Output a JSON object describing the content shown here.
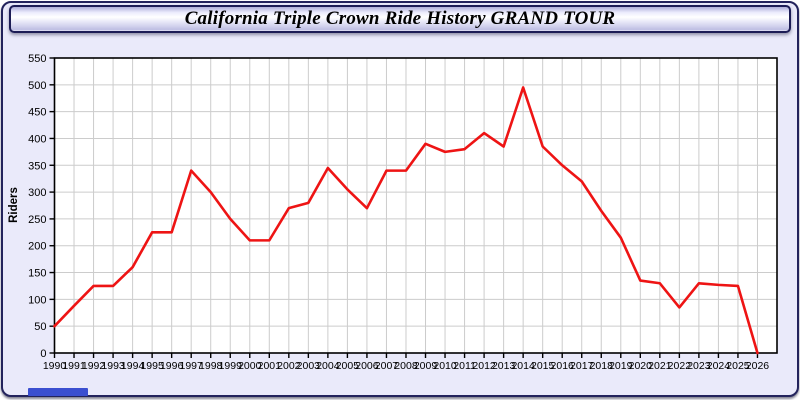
{
  "title": "California Triple Crown Ride History GRAND TOUR",
  "chart_data": {
    "type": "line",
    "title": "California Triple Crown Ride History GRAND TOUR",
    "xlabel": "",
    "ylabel": "Riders",
    "x": [
      1990,
      1991,
      1992,
      1993,
      1994,
      1995,
      1996,
      1997,
      1998,
      1999,
      2000,
      2001,
      2002,
      2003,
      2004,
      2005,
      2006,
      2007,
      2008,
      2009,
      2010,
      2011,
      2012,
      2013,
      2014,
      2015,
      2016,
      2017,
      2018,
      2019,
      2020,
      2021,
      2022,
      2023,
      2024,
      2025,
      2026
    ],
    "series": [
      {
        "name": "Riders",
        "values": [
          50,
          88,
          125,
          125,
          160,
          225,
          225,
          340,
          300,
          250,
          210,
          210,
          270,
          280,
          345,
          305,
          270,
          340,
          340,
          390,
          375,
          380,
          410,
          385,
          495,
          385,
          350,
          320,
          265,
          215,
          135,
          130,
          85,
          130,
          127,
          125,
          0
        ]
      }
    ],
    "ylim": [
      0,
      550
    ],
    "y_tick_step": 50,
    "grid": true,
    "legend": "none",
    "line_color": "#ee1414",
    "grid_color": "#cccccc",
    "plot_bg": "#ffffff",
    "page_bg": "#eaeafa",
    "axis_color": "#000000"
  }
}
